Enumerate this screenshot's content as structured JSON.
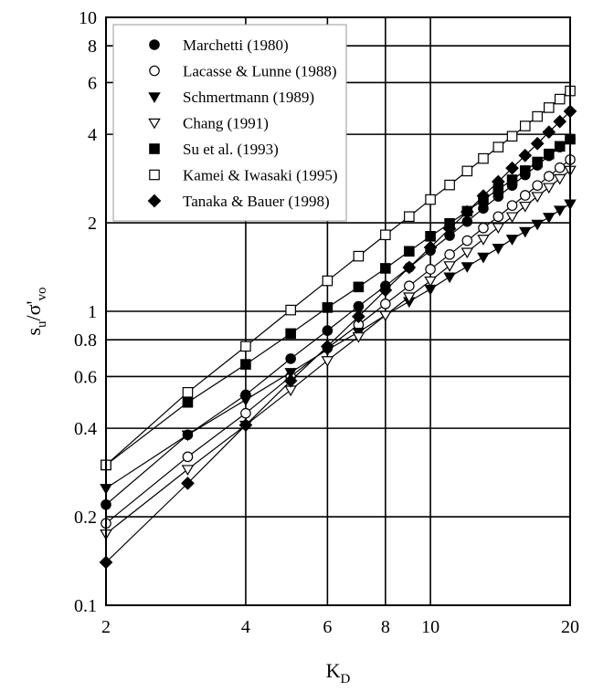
{
  "chart_data": {
    "type": "scatter",
    "title": "",
    "xscale": "log",
    "yscale": "log",
    "xlim": [
      2,
      20
    ],
    "ylim": [
      0.1,
      10
    ],
    "grid": true,
    "legend_placement": "top-left",
    "xlabel": {
      "main": "K",
      "sub": "D"
    },
    "ylabel": {
      "main": "s",
      "sub": "u",
      "mid": "/σ'",
      "sub2": "vo"
    },
    "x_ticks": [
      {
        "value": 2,
        "label": "2"
      },
      {
        "value": 4,
        "label": "4"
      },
      {
        "value": 6,
        "label": "6"
      },
      {
        "value": 8,
        "label": "8"
      },
      {
        "value": 10,
        "label": "10"
      },
      {
        "value": 20,
        "label": "20"
      }
    ],
    "y_ticks": [
      {
        "value": 0.1,
        "label": "0.1"
      },
      {
        "value": 0.2,
        "label": "0.2"
      },
      {
        "value": 0.4,
        "label": "0.4"
      },
      {
        "value": 0.6,
        "label": "0.6"
      },
      {
        "value": 0.8,
        "label": "0.8"
      },
      {
        "value": 1,
        "label": "1"
      },
      {
        "value": 2,
        "label": "2"
      },
      {
        "value": 4,
        "label": "4"
      },
      {
        "value": 6,
        "label": "6"
      },
      {
        "value": 8,
        "label": "8"
      },
      {
        "value": 10,
        "label": "10"
      }
    ],
    "series": [
      {
        "name": "Marchetti (1980)",
        "marker": "circle-filled",
        "x": [
          2,
          3,
          4,
          5,
          6,
          7,
          8,
          9,
          10,
          11,
          12,
          13,
          14,
          15,
          16,
          17,
          18,
          19,
          20
        ],
        "y": [
          0.22,
          0.38,
          0.52,
          0.69,
          0.86,
          1.04,
          1.22,
          1.41,
          1.61,
          1.81,
          2.02,
          2.24,
          2.46,
          2.68,
          2.91,
          3.14,
          3.38,
          3.62,
          3.86
        ]
      },
      {
        "name": "Lacasse & Lunne (1988)",
        "marker": "circle-open",
        "x": [
          2,
          3,
          4,
          5,
          6,
          7,
          8,
          9,
          10,
          11,
          12,
          13,
          14,
          15,
          16,
          17,
          18,
          19,
          20
        ],
        "y": [
          0.19,
          0.32,
          0.45,
          0.6,
          0.75,
          0.9,
          1.06,
          1.22,
          1.39,
          1.56,
          1.74,
          1.92,
          2.1,
          2.29,
          2.48,
          2.68,
          2.88,
          3.08,
          3.28
        ]
      },
      {
        "name": "Schmertmann (1989)",
        "marker": "triangle-down-filled",
        "x": [
          2,
          3,
          4,
          5,
          6,
          7,
          8,
          9,
          10,
          11,
          12,
          13,
          14,
          15,
          16,
          17,
          18,
          19,
          20
        ],
        "y": [
          0.25,
          0.38,
          0.5,
          0.62,
          0.74,
          0.85,
          0.97,
          1.08,
          1.19,
          1.31,
          1.42,
          1.53,
          1.64,
          1.76,
          1.87,
          1.98,
          2.09,
          2.21,
          2.32
        ]
      },
      {
        "name": "Chang (1991)",
        "marker": "triangle-down-open",
        "x": [
          2,
          3,
          4,
          5,
          6,
          7,
          8,
          9,
          10,
          11,
          12,
          13,
          14,
          15,
          16,
          17,
          18,
          19,
          20
        ],
        "y": [
          0.175,
          0.29,
          0.41,
          0.54,
          0.68,
          0.82,
          0.97,
          1.12,
          1.27,
          1.43,
          1.59,
          1.76,
          1.93,
          2.1,
          2.28,
          2.46,
          2.64,
          2.83,
          3.02
        ]
      },
      {
        "name": "Su et al. (1993)",
        "marker": "square-filled",
        "x": [
          2,
          3,
          4,
          5,
          6,
          7,
          8,
          9,
          10,
          11,
          12,
          13,
          14,
          15,
          16,
          17,
          18,
          19,
          20
        ],
        "y": [
          0.3,
          0.49,
          0.66,
          0.84,
          1.03,
          1.21,
          1.4,
          1.6,
          1.8,
          1.99,
          2.19,
          2.4,
          2.6,
          2.8,
          3.01,
          3.22,
          3.43,
          3.64,
          3.85
        ]
      },
      {
        "name": "Kamei & Iwasaki (1995)",
        "marker": "square-open",
        "x": [
          2,
          3,
          4,
          5,
          6,
          7,
          8,
          9,
          10,
          11,
          12,
          13,
          14,
          15,
          16,
          17,
          18,
          19,
          20
        ],
        "y": [
          0.3,
          0.53,
          0.76,
          1.01,
          1.27,
          1.54,
          1.82,
          2.1,
          2.4,
          2.69,
          3.0,
          3.31,
          3.62,
          3.94,
          4.27,
          4.6,
          4.93,
          5.27,
          5.62
        ]
      },
      {
        "name": "Tanaka & Bauer (1998)",
        "marker": "diamond-filled",
        "x": [
          2,
          3,
          4,
          5,
          6,
          7,
          8,
          9,
          10,
          11,
          12,
          13,
          14,
          15,
          16,
          17,
          18,
          19,
          20
        ],
        "y": [
          0.14,
          0.26,
          0.41,
          0.58,
          0.76,
          0.96,
          1.18,
          1.41,
          1.65,
          1.91,
          2.18,
          2.47,
          2.76,
          3.07,
          3.39,
          3.72,
          4.07,
          4.42,
          4.79
        ]
      }
    ]
  }
}
